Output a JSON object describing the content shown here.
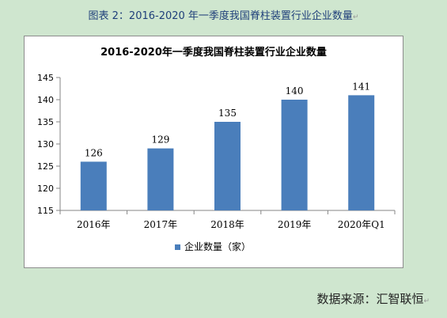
{
  "caption": "图表 2：2016-2020 年一季度我国脊柱装置行业企业数量",
  "source": "数据来源：汇智联恒",
  "chart_data": {
    "type": "bar",
    "title": "2016-2020年一季度我国脊柱装置行业企业数量",
    "categories": [
      "2016年",
      "2017年",
      "2018年",
      "2019年",
      "2020年Q1"
    ],
    "series": [
      {
        "name": "企业数量（家）",
        "values": [
          126,
          129,
          135,
          140,
          141
        ],
        "color": "#4a7ebb"
      }
    ],
    "ylim": [
      115,
      145
    ],
    "yticks": [
      115,
      120,
      125,
      130,
      135,
      140,
      145
    ],
    "legend_position": "bottom",
    "grid": false
  }
}
